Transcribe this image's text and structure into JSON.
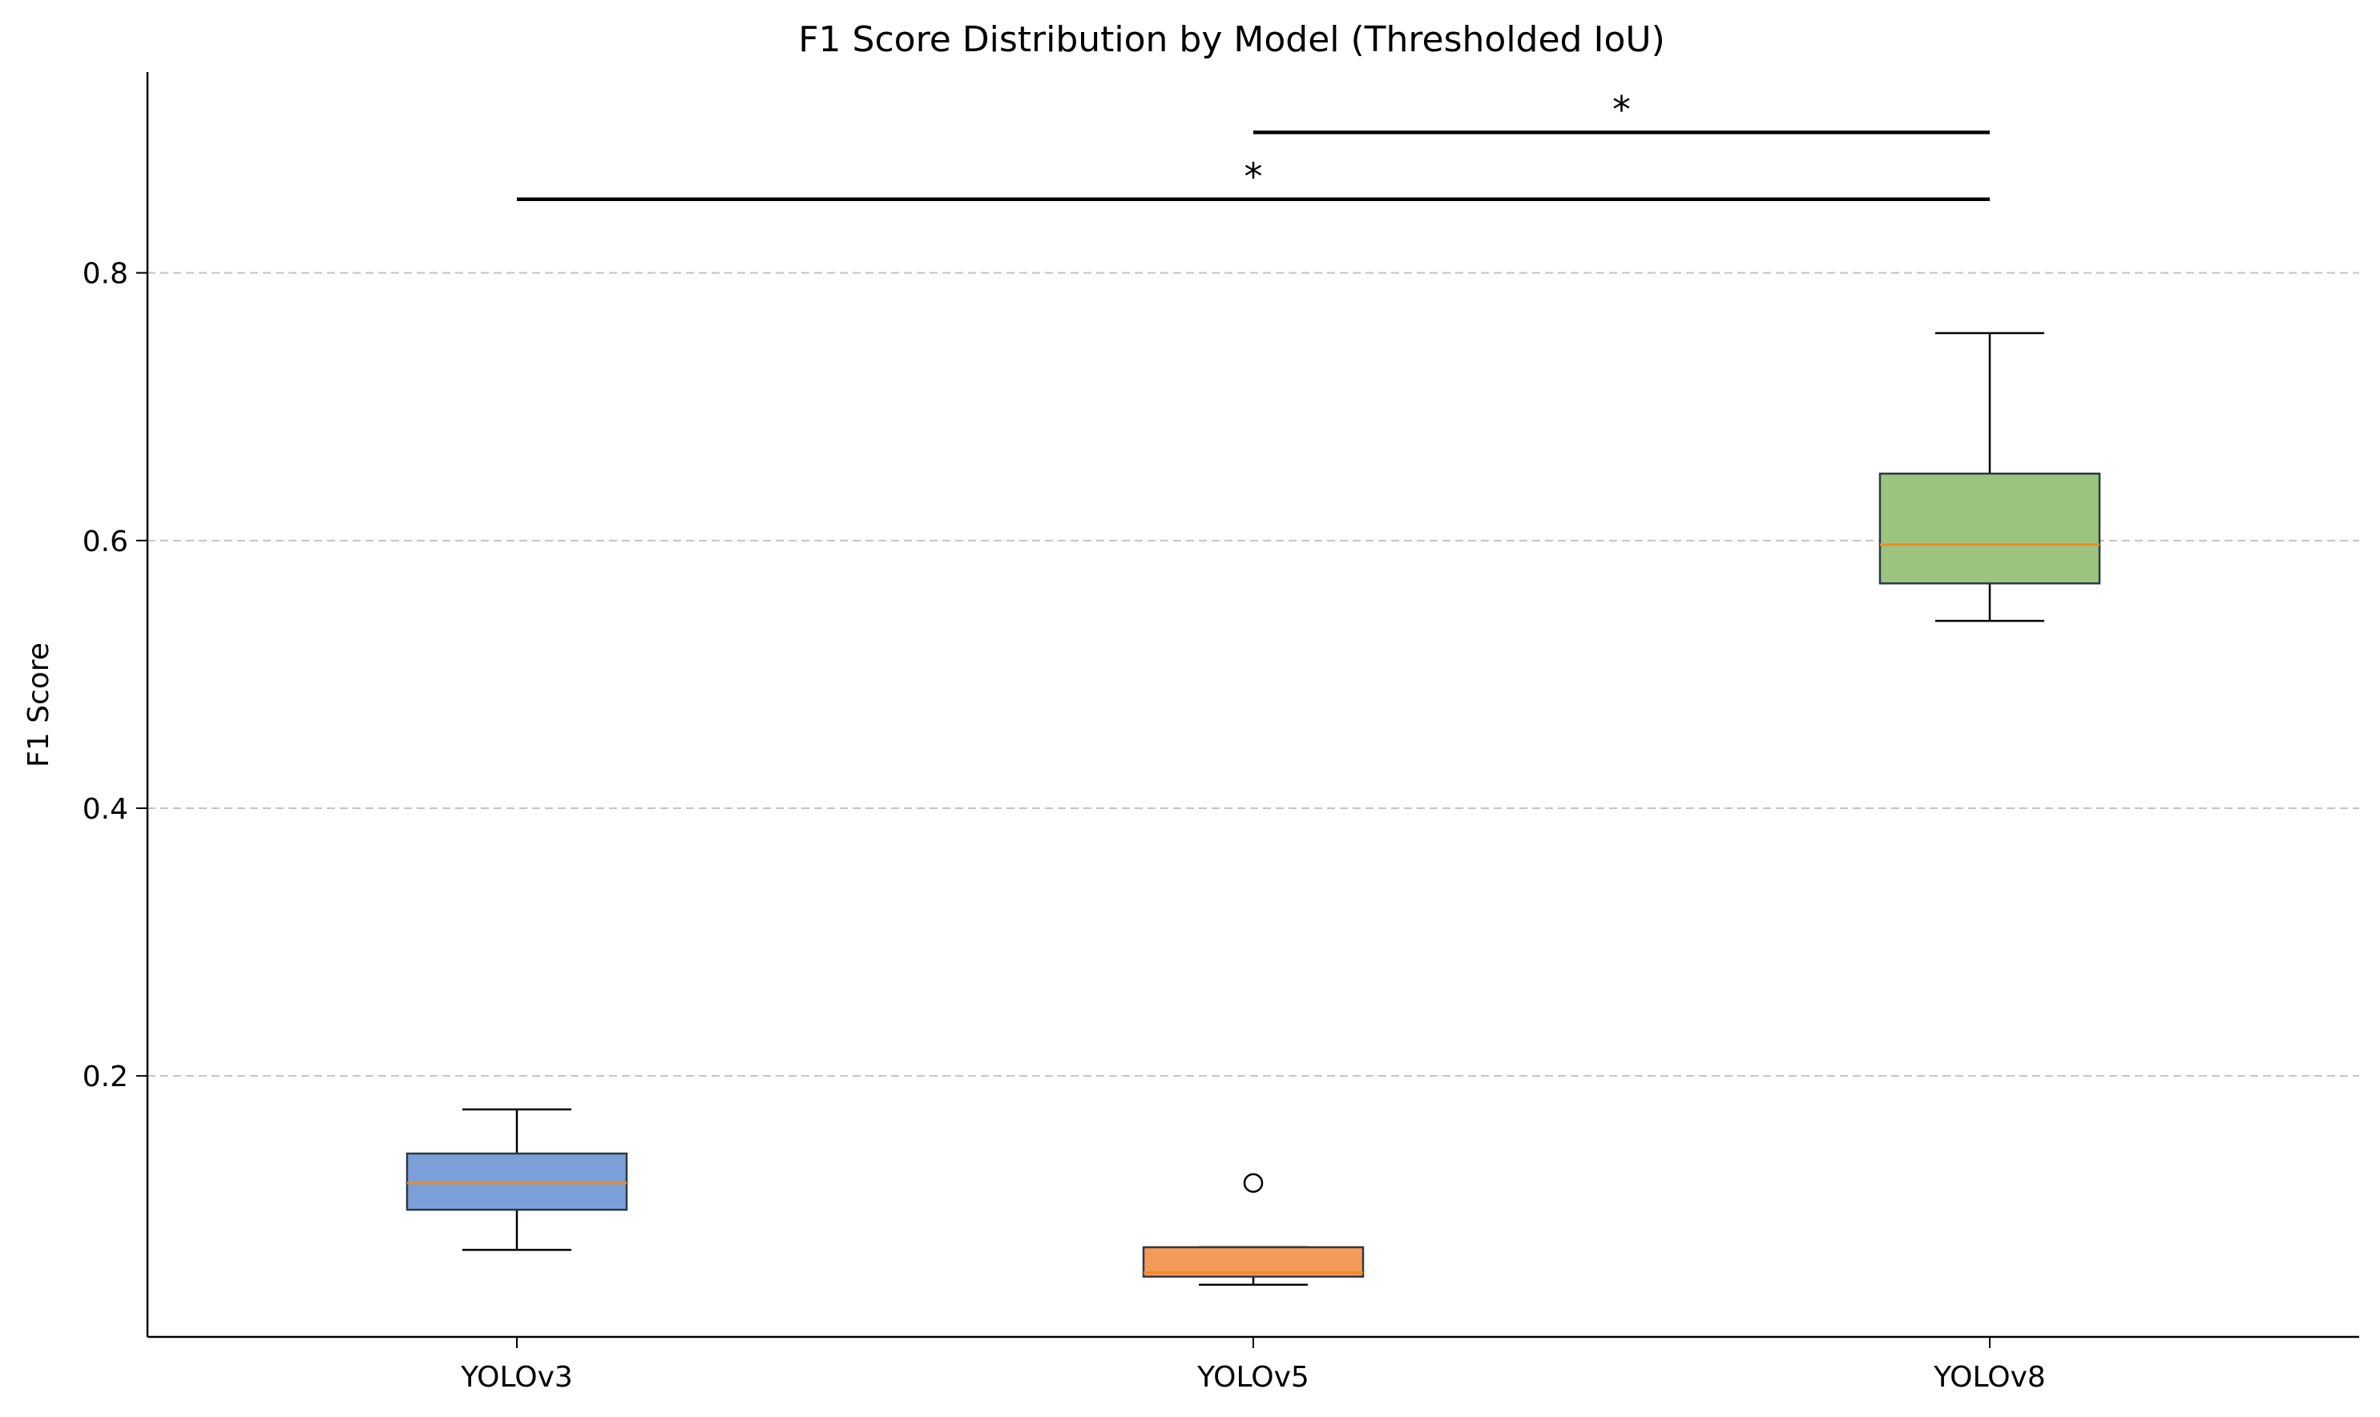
{
  "chart_data": {
    "type": "box",
    "title": "F1 Score Distribution by Model (Thresholded IoU)",
    "xlabel": "",
    "ylabel": "F1 Score",
    "ylim": [
      0.005,
      0.95
    ],
    "yticks": [
      0.2,
      0.4,
      0.6,
      0.8
    ],
    "ytick_labels": [
      "0.2",
      "0.4",
      "0.6",
      "0.8"
    ],
    "grid": {
      "y": true,
      "x": false,
      "style": "dashed"
    },
    "categories": [
      "YOLOv3",
      "YOLOv5",
      "YOLOv8"
    ],
    "boxes": [
      {
        "name": "YOLOv3",
        "whisker_low": 0.07,
        "q1": 0.1,
        "median": 0.12,
        "q3": 0.142,
        "whisker_high": 0.175,
        "outliers": [],
        "color": "#7b9fd8"
      },
      {
        "name": "YOLOv5",
        "whisker_low": 0.044,
        "q1": 0.05,
        "median": 0.053,
        "q3": 0.072,
        "whisker_high": 0.072,
        "outliers": [
          0.12
        ],
        "color": "#f59b5a"
      },
      {
        "name": "YOLOv8",
        "whisker_low": 0.54,
        "q1": 0.568,
        "median": 0.597,
        "q3": 0.65,
        "whisker_high": 0.755,
        "outliers": [],
        "color": "#9bc47f"
      }
    ],
    "median_color": "#f08a24",
    "significance": [
      {
        "from": "YOLOv5",
        "to": "YOLOv8",
        "y": 0.905,
        "label": "*"
      },
      {
        "from": "YOLOv3",
        "to": "YOLOv8",
        "y": 0.855,
        "label": "*"
      }
    ]
  }
}
